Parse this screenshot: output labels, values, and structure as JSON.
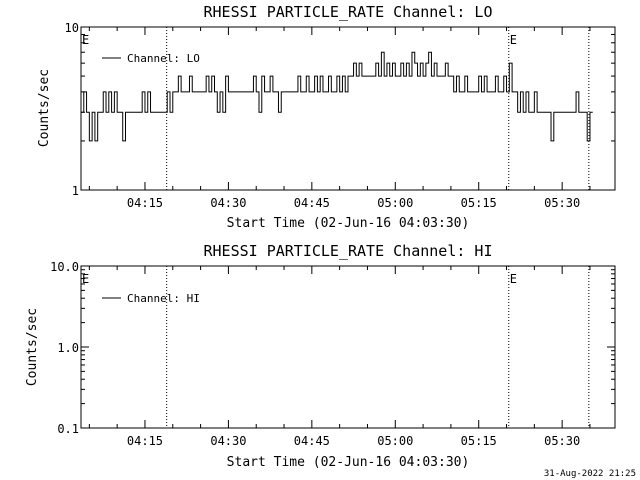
{
  "footer_timestamp": "31-Aug-2022 21:25",
  "chart_data": [
    {
      "type": "line",
      "title": "RHESSI PARTICLE_RATE Channel: LO",
      "xlabel": "Start Time (02-Jun-16 04:03:30)",
      "ylabel": "Counts/sec",
      "y_scale": "log",
      "ylim": [
        1,
        10
      ],
      "y_ticks": [
        1,
        10
      ],
      "y_tick_labels": [
        "1",
        "10"
      ],
      "x_start_minutes": 3.5,
      "x_end_minutes": 99.5,
      "x_ticks": [
        15,
        30,
        45,
        60,
        75,
        90
      ],
      "x_tick_labels": [
        "04:15",
        "04:30",
        "04:45",
        "05:00",
        "05:15",
        "05:30"
      ],
      "event_lines": [
        18.9,
        80.4,
        94.8
      ],
      "event_markers": [
        {
          "label": "E",
          "at_minutes": 3.5
        },
        {
          "label": "E",
          "at_minutes": 80.4
        }
      ],
      "legend_position": "top-left",
      "series": [
        {
          "name": "Channel: LO",
          "time_minutes": [
            3.5,
            4,
            4.5,
            5,
            5.5,
            6,
            6.5,
            7,
            7.5,
            8,
            8.5,
            9,
            9.5,
            10,
            10.5,
            11,
            11.5,
            12,
            12.5,
            13,
            13.5,
            14,
            14.5,
            15,
            15.5,
            16,
            16.5,
            17,
            17.5,
            18,
            18.5,
            19,
            19.5,
            20,
            20.5,
            21,
            21.5,
            22,
            22.5,
            23,
            23.5,
            24,
            24.5,
            25,
            25.5,
            26,
            26.5,
            27,
            27.5,
            28,
            28.5,
            29,
            29.5,
            30,
            30.5,
            31,
            31.5,
            32,
            32.5,
            33,
            33.5,
            34,
            34.5,
            35,
            35.5,
            36,
            36.5,
            37,
            37.5,
            38,
            38.5,
            39,
            39.5,
            40,
            40.5,
            41,
            41.5,
            42,
            42.5,
            43,
            43.5,
            44,
            44.5,
            45,
            45.5,
            46,
            46.5,
            47,
            47.5,
            48,
            48.5,
            49,
            49.5,
            50,
            50.5,
            51,
            51.5,
            52,
            52.5,
            53,
            53.5,
            54,
            54.5,
            55,
            55.5,
            56,
            56.5,
            57,
            57.5,
            58,
            58.5,
            59,
            59.5,
            60,
            60.5,
            61,
            61.5,
            62,
            62.5,
            63,
            63.5,
            64,
            64.5,
            65,
            65.5,
            66,
            66.5,
            67,
            67.5,
            68,
            68.5,
            69,
            69.5,
            70,
            70.5,
            71,
            71.5,
            72,
            72.5,
            73,
            73.5,
            74,
            74.5,
            75,
            75.5,
            76,
            76.5,
            77,
            77.5,
            78,
            78.5,
            79,
            79.5,
            80,
            80.5,
            81,
            81.5,
            82,
            82.5,
            83,
            83.5,
            84,
            84.5,
            85,
            85.5,
            86,
            86.5,
            87,
            87.5,
            88,
            88.5,
            89,
            89.5,
            90,
            90.5,
            91,
            91.5,
            92,
            92.5,
            93,
            93.5,
            94,
            94.5,
            95
          ],
          "values": [
            3,
            4,
            3,
            2,
            3,
            2,
            3,
            3,
            4,
            3,
            4,
            3,
            4,
            3,
            3,
            2,
            3,
            3,
            3,
            3,
            3,
            3,
            4,
            3,
            4,
            3,
            3,
            3,
            3,
            3,
            3,
            4,
            3,
            4,
            4,
            5,
            4,
            4,
            4,
            5,
            4,
            4,
            4,
            4,
            4,
            5,
            4,
            5,
            4,
            3,
            4,
            3,
            5,
            4,
            4,
            4,
            4,
            4,
            4,
            4,
            4,
            4,
            5,
            4,
            3,
            5,
            4,
            4,
            5,
            4,
            4,
            3,
            4,
            4,
            4,
            4,
            4,
            4,
            5,
            4,
            4,
            5,
            4,
            4,
            5,
            4,
            5,
            4,
            4,
            5,
            4,
            4,
            5,
            4,
            5,
            4,
            5,
            5,
            6,
            5,
            6,
            5,
            5,
            5,
            5,
            5,
            6,
            5,
            7,
            5,
            6,
            5,
            6,
            5,
            5,
            6,
            5,
            6,
            5,
            7,
            6,
            5,
            6,
            5,
            6,
            7,
            5,
            6,
            5,
            5,
            5,
            6,
            5,
            5,
            4,
            5,
            4,
            4,
            5,
            4,
            4,
            4,
            4,
            5,
            4,
            5,
            4,
            4,
            4,
            5,
            4,
            4,
            5,
            4,
            6,
            4,
            4,
            3,
            4,
            3,
            4,
            3,
            3,
            4,
            3,
            3,
            3,
            3,
            3,
            2,
            3,
            3,
            3,
            3,
            3,
            3,
            3,
            3,
            4,
            3,
            3,
            3,
            2,
            3
          ]
        }
      ]
    },
    {
      "type": "line",
      "title": "RHESSI PARTICLE_RATE Channel: HI",
      "xlabel": "Start Time (02-Jun-16 04:03:30)",
      "ylabel": "Counts/sec",
      "y_scale": "log",
      "ylim": [
        0.1,
        10
      ],
      "y_ticks": [
        0.1,
        1,
        10
      ],
      "y_tick_labels": [
        "0.1",
        "1.0",
        "10.0"
      ],
      "x_start_minutes": 3.5,
      "x_end_minutes": 99.5,
      "x_ticks": [
        15,
        30,
        45,
        60,
        75,
        90
      ],
      "x_tick_labels": [
        "04:15",
        "04:30",
        "04:45",
        "05:00",
        "05:15",
        "05:30"
      ],
      "event_lines": [
        18.9,
        80.4,
        94.8
      ],
      "event_markers": [
        {
          "label": "E",
          "at_minutes": 3.5
        },
        {
          "label": "E",
          "at_minutes": 80.4
        }
      ],
      "legend_position": "top-left",
      "series": [
        {
          "name": "Channel: HI",
          "time_minutes": [],
          "values": []
        }
      ]
    }
  ]
}
